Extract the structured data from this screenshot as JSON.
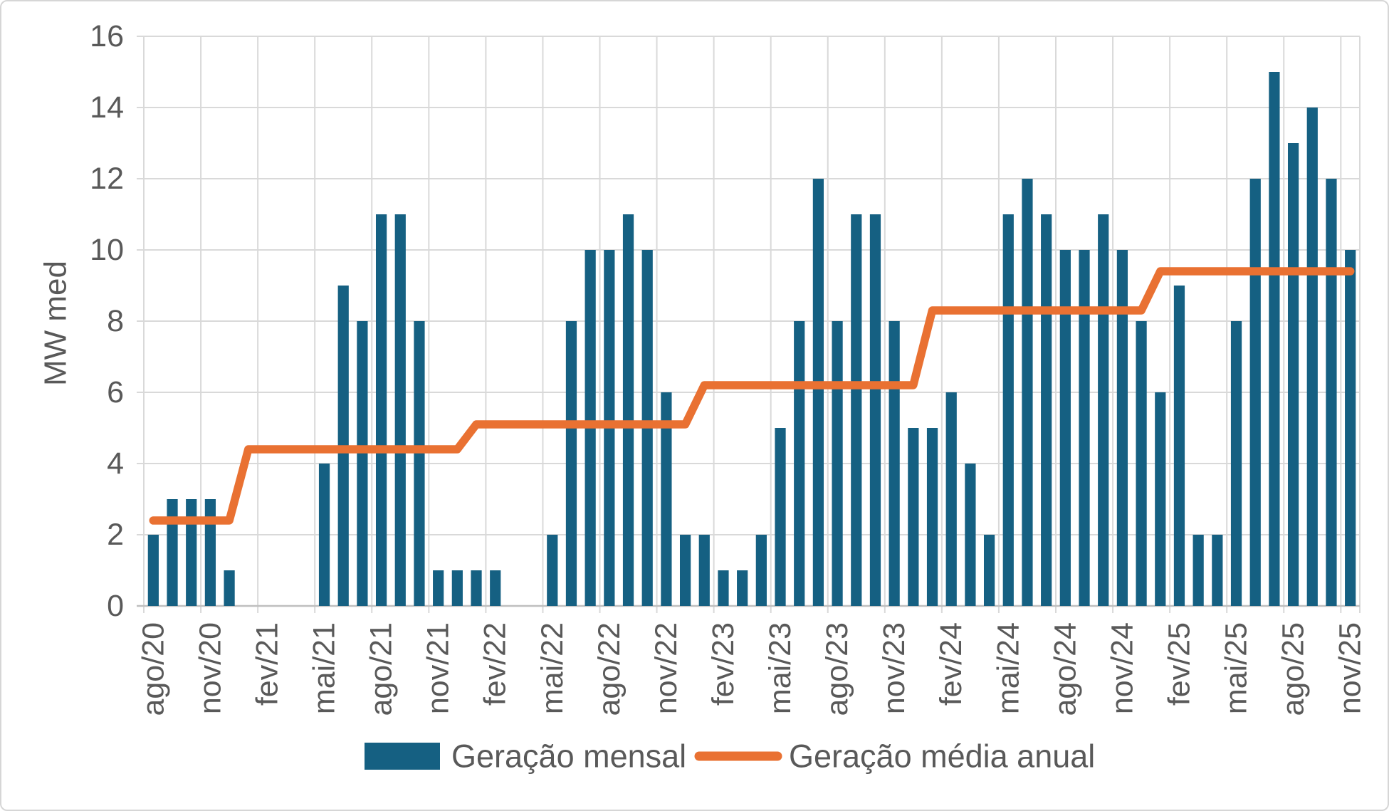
{
  "chart_data": {
    "type": "bar",
    "title": "",
    "xlabel": "",
    "ylabel": "MW med",
    "ylim": [
      0,
      16
    ],
    "y_ticks": [
      0,
      2,
      4,
      6,
      8,
      10,
      12,
      14,
      16
    ],
    "x_tick_every": 3,
    "grid": true,
    "legend_position": "bottom",
    "categories": [
      "ago/20",
      "set/20",
      "out/20",
      "nov/20",
      "dez/20",
      "jan/21",
      "fev/21",
      "mar/21",
      "abr/21",
      "mai/21",
      "jun/21",
      "jul/21",
      "ago/21",
      "set/21",
      "out/21",
      "nov/21",
      "dez/21",
      "jan/22",
      "fev/22",
      "mar/22",
      "abr/22",
      "mai/22",
      "jun/22",
      "jul/22",
      "ago/22",
      "set/22",
      "out/22",
      "nov/22",
      "dez/22",
      "jan/23",
      "fev/23",
      "mar/23",
      "abr/23",
      "mai/23",
      "jun/23",
      "jul/23",
      "ago/23",
      "set/23",
      "out/23",
      "nov/23",
      "dez/23",
      "jan/24",
      "fev/24",
      "mar/24",
      "abr/24",
      "mai/24",
      "jun/24",
      "jul/24",
      "ago/24",
      "set/24",
      "out/24",
      "nov/24",
      "dez/24",
      "jan/25",
      "fev/25",
      "mar/25",
      "abr/25",
      "mai/25",
      "jun/25",
      "jul/25",
      "ago/25",
      "set/25",
      "out/25",
      "nov/25"
    ],
    "series": [
      {
        "name": "Geração mensal",
        "type": "bar",
        "color": "#156082",
        "values": [
          2,
          3,
          3,
          3,
          1,
          0,
          0,
          0,
          0,
          4,
          9,
          8,
          11,
          11,
          8,
          1,
          1,
          1,
          1,
          0,
          0,
          2,
          8,
          10,
          10,
          11,
          10,
          6,
          2,
          2,
          1,
          1,
          2,
          5,
          8,
          12,
          8,
          11,
          11,
          8,
          5,
          5,
          6,
          4,
          2,
          11,
          12,
          11,
          10,
          10,
          11,
          10,
          8,
          6,
          9,
          2,
          2,
          8,
          12,
          15,
          13,
          14,
          12,
          10
        ]
      },
      {
        "name": "Geração média anual",
        "type": "line",
        "color": "#E97132",
        "values": [
          2.4,
          2.4,
          2.4,
          2.4,
          2.4,
          4.4,
          4.4,
          4.4,
          4.4,
          4.4,
          4.4,
          4.4,
          4.4,
          4.4,
          4.4,
          4.4,
          4.4,
          5.1,
          5.1,
          5.1,
          5.1,
          5.1,
          5.1,
          5.1,
          5.1,
          5.1,
          5.1,
          5.1,
          5.1,
          6.2,
          6.2,
          6.2,
          6.2,
          6.2,
          6.2,
          6.2,
          6.2,
          6.2,
          6.2,
          6.2,
          6.2,
          8.3,
          8.3,
          8.3,
          8.3,
          8.3,
          8.3,
          8.3,
          8.3,
          8.3,
          8.3,
          8.3,
          8.3,
          9.4,
          9.4,
          9.4,
          9.4,
          9.4,
          9.4,
          9.4,
          9.4,
          9.4,
          9.4,
          9.4
        ]
      }
    ],
    "annual_averages": {
      "2020": 2.4,
      "2021": 4.4,
      "2022": 5.1,
      "2023": 6.2,
      "2024": 8.3,
      "2025": 9.4
    }
  },
  "colors": {
    "bar": "#156082",
    "line": "#E97132",
    "text": "#595959",
    "gridline": "#D9D9D9",
    "axis": "#BFBFBF",
    "background": "#FFFFFF"
  }
}
